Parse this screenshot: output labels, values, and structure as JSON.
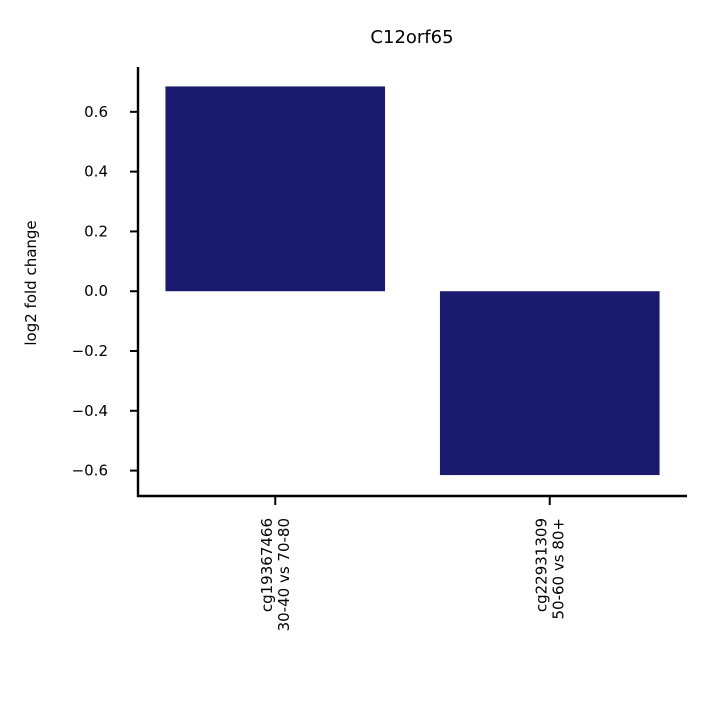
{
  "chart_data": {
    "type": "bar",
    "title": "C12orf65",
    "xlabel": "",
    "ylabel": "log2 fold change",
    "categories": [
      [
        "cg19367466",
        "30-40 vs 70-80"
      ],
      [
        "cg22931309",
        "50-60 vs 80+"
      ]
    ],
    "values": [
      0.685,
      -0.615
    ],
    "ylim": [
      -0.685,
      0.75
    ],
    "yticks": [
      -0.6,
      -0.4,
      -0.2,
      0.0,
      0.2,
      0.4,
      0.6
    ],
    "ytick_labels": [
      "−0.6",
      "−0.4",
      "−0.2",
      "0.0",
      "0.2",
      "0.4",
      "0.6"
    ],
    "bar_color": "#1a1a6e",
    "grid": false,
    "legend": "none"
  }
}
